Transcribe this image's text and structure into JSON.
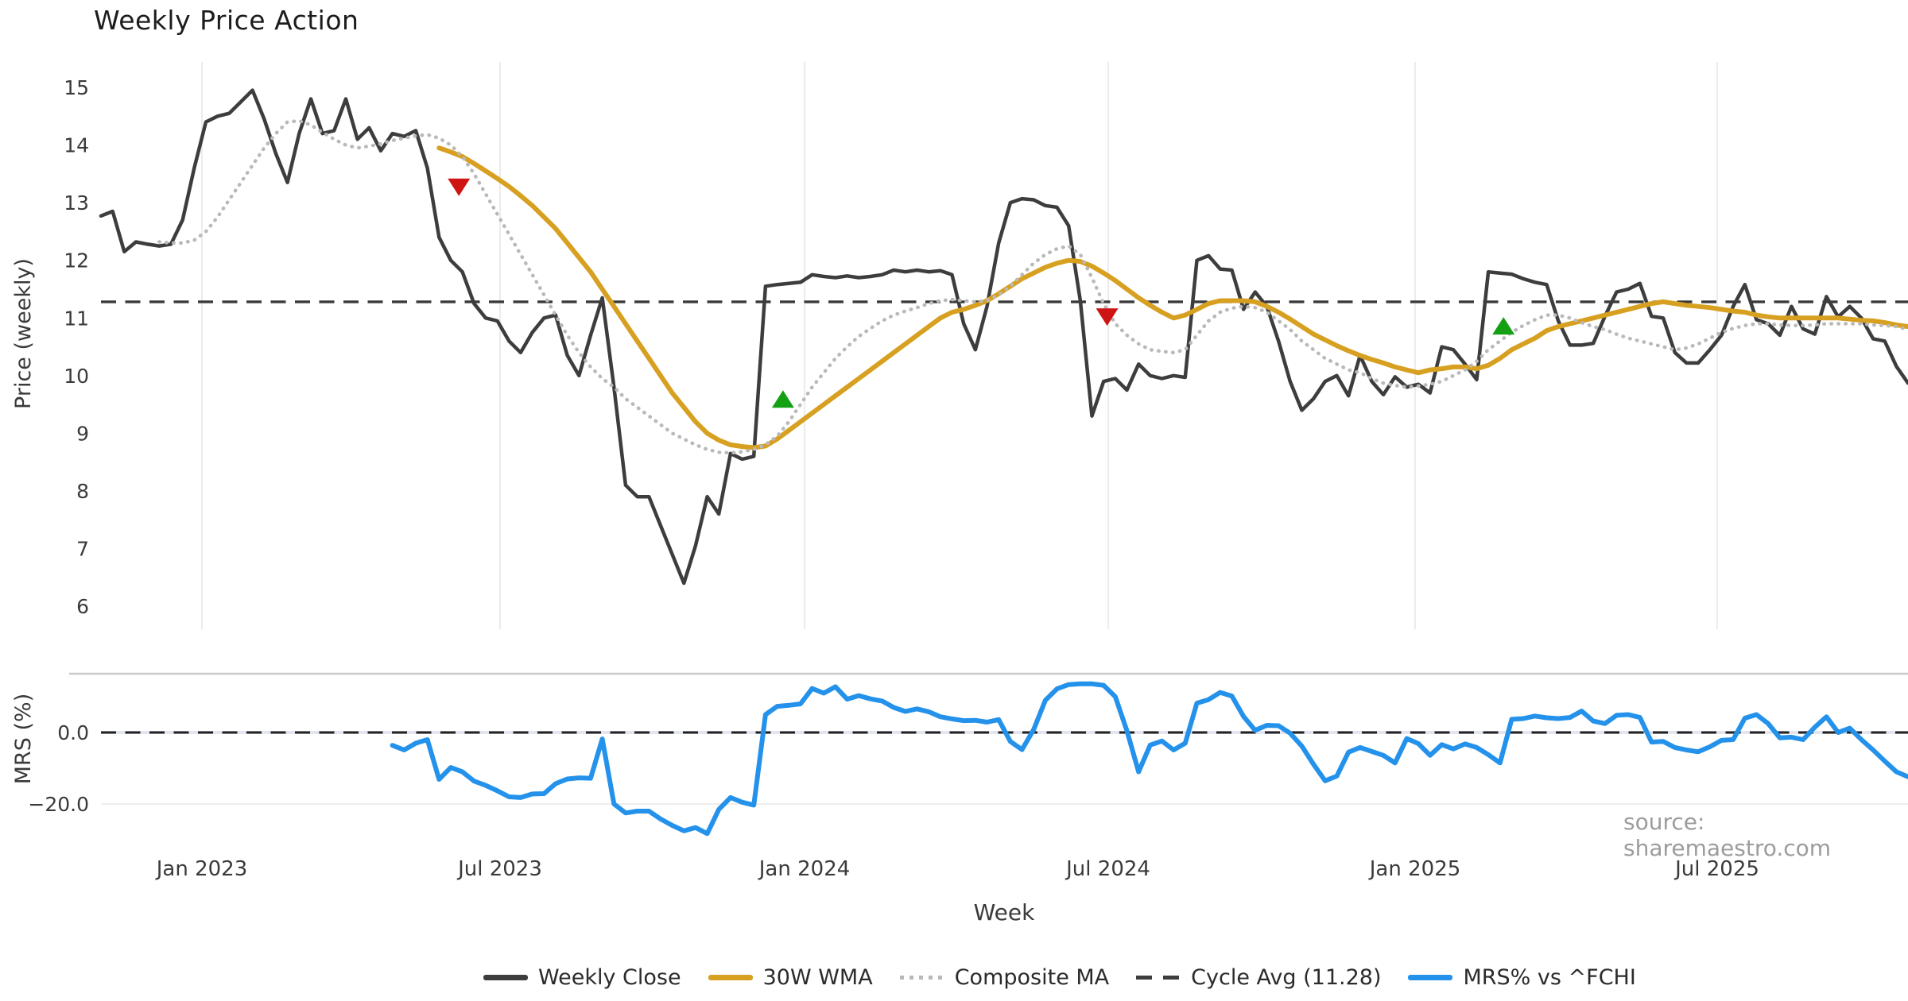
{
  "title": "Weekly Price Action",
  "source_note": "source: sharemaestro.com",
  "colors": {
    "close": "#3d3d3d",
    "wma": "#d7a021",
    "composite": "#b9b9b9",
    "cycle_avg": "#3a3a3a",
    "mrs": "#2492eb",
    "sell_marker": "#cf1414",
    "buy_marker": "#13a113",
    "grid_vertical": "#ececec",
    "mrs_top_spine": "#c9c9c9",
    "mrs_zero_band": "#e3e6f0",
    "mrs_minus20_grid": "#ededed",
    "tick_text": "#3a3a3a",
    "axis_label_text": "#2b2b2b"
  },
  "legend": [
    {
      "label": "Weekly Close",
      "style": "solid",
      "color": "#3d3d3d",
      "thick": 7
    },
    {
      "label": "30W WMA",
      "style": "solid",
      "color": "#d7a021",
      "thick": 7
    },
    {
      "label": "Composite MA",
      "style": "dotted",
      "color": "#b9b9b9",
      "thick": 5
    },
    {
      "label": "Cycle Avg (11.28)",
      "style": "dashed",
      "color": "#3d3d3d",
      "thick": 5
    },
    {
      "label": "MRS% vs ^FCHI",
      "style": "solid",
      "color": "#2492eb",
      "thick": 7
    }
  ],
  "chart_data": {
    "type": "line",
    "title": "Weekly Price Action",
    "xlabel": "Week",
    "panels": {
      "price": {
        "ylabel": "Price (weekly)",
        "ylim": [
          5.6,
          15.6
        ],
        "yticks": [
          "15",
          "14",
          "13",
          "12",
          "11",
          "10",
          "9",
          "8",
          "7",
          "6"
        ],
        "ytick_values": [
          15,
          14,
          13,
          12,
          11,
          10,
          9,
          8,
          7,
          6
        ],
        "grid": "vertical-only"
      },
      "mrs": {
        "ylabel": "MRS (%)",
        "ylim": [
          -31,
          16.5
        ],
        "yticks": [
          "0.0",
          "−20.0"
        ],
        "ytick_values": [
          0,
          -20
        ],
        "grid": "horizontal-only"
      }
    },
    "x_ticks": [
      {
        "label": "Jan 2023",
        "week": 8.66
      },
      {
        "label": "Jul 2023",
        "week": 34.23
      },
      {
        "label": "Jan 2024",
        "week": 60.35
      },
      {
        "label": "Jul 2024",
        "week": 86.4
      },
      {
        "label": "Jan 2025",
        "week": 112.72
      },
      {
        "label": "Jul 2025",
        "week": 138.63
      }
    ],
    "x_unit": "weekly points, week 0 ≈ Nov 2022, week 155 ≈ Nov 2025",
    "reference_lines": [
      {
        "name": "Cycle Avg (11.28)",
        "panel": "price",
        "value": 11.28,
        "style": "dashed",
        "color": "#3a3a3a"
      },
      {
        "name": "MRS zero line",
        "panel": "mrs",
        "value": 0,
        "style": "dashed",
        "color": "#222222"
      }
    ],
    "markers": [
      {
        "type": "sell",
        "week": 30.7,
        "value": 13.28
      },
      {
        "type": "buy",
        "week": 58.5,
        "value": 9.58
      },
      {
        "type": "sell",
        "week": 86.3,
        "value": 11.03
      },
      {
        "type": "buy",
        "week": 120.3,
        "value": 10.85
      }
    ],
    "series": [
      {
        "name": "Weekly Close",
        "panel": "price",
        "style": "solid",
        "color": "#3d3d3d",
        "width": 4.5,
        "start_week": 0,
        "values": [
          12.77,
          12.85,
          12.15,
          12.32,
          12.28,
          12.25,
          12.28,
          12.7,
          13.6,
          14.4,
          14.5,
          14.55,
          14.75,
          14.95,
          14.45,
          13.85,
          13.35,
          14.2,
          14.8,
          14.2,
          14.25,
          14.8,
          14.1,
          14.3,
          13.9,
          14.2,
          14.15,
          14.25,
          13.6,
          12.4,
          12.0,
          11.8,
          11.25,
          11.0,
          10.95,
          10.6,
          10.4,
          10.75,
          11.0,
          11.05,
          10.35,
          10.0,
          10.7,
          11.35,
          9.8,
          8.1,
          7.9,
          7.9,
          7.4,
          6.9,
          6.4,
          7.05,
          7.9,
          7.6,
          8.65,
          8.55,
          8.6,
          11.55,
          11.58,
          11.6,
          11.62,
          11.75,
          11.72,
          11.7,
          11.73,
          11.7,
          11.72,
          11.75,
          11.83,
          11.8,
          11.83,
          11.8,
          11.82,
          11.75,
          10.9,
          10.45,
          11.2,
          12.3,
          13.0,
          13.07,
          13.05,
          12.95,
          12.92,
          12.6,
          11.3,
          9.3,
          9.9,
          9.95,
          9.75,
          10.2,
          10.0,
          9.95,
          10.0,
          9.97,
          12.0,
          12.08,
          11.85,
          11.83,
          11.15,
          11.45,
          11.2,
          10.6,
          9.9,
          9.4,
          9.6,
          9.9,
          10.0,
          9.65,
          10.35,
          9.9,
          9.67,
          9.98,
          9.8,
          9.85,
          9.7,
          10.5,
          10.45,
          10.2,
          9.93,
          11.8,
          11.78,
          11.76,
          11.68,
          11.62,
          11.58,
          10.95,
          10.53,
          10.53,
          10.56,
          11.03,
          11.45,
          11.5,
          11.6,
          11.03,
          11.0,
          10.4,
          10.22,
          10.22,
          10.45,
          10.7,
          11.2,
          11.58,
          10.97,
          10.9,
          10.7,
          11.2,
          10.81,
          10.72,
          11.37,
          11.02,
          11.2,
          11.0,
          10.64,
          10.6,
          10.16,
          9.87
        ]
      },
      {
        "name": "30W WMA",
        "panel": "price",
        "style": "solid",
        "color": "#d7a021",
        "width": 6,
        "start_week": 29,
        "values": [
          13.95,
          13.88,
          13.8,
          13.68,
          13.55,
          13.42,
          13.28,
          13.12,
          12.95,
          12.75,
          12.55,
          12.3,
          12.05,
          11.8,
          11.5,
          11.2,
          10.9,
          10.6,
          10.3,
          10.0,
          9.7,
          9.45,
          9.2,
          9.0,
          8.88,
          8.8,
          8.77,
          8.75,
          8.78,
          8.9,
          9.05,
          9.2,
          9.35,
          9.5,
          9.65,
          9.8,
          9.95,
          10.1,
          10.25,
          10.4,
          10.55,
          10.7,
          10.85,
          11.0,
          11.1,
          11.15,
          11.22,
          11.3,
          11.42,
          11.55,
          11.68,
          11.78,
          11.88,
          11.95,
          12.0,
          11.98,
          11.9,
          11.78,
          11.65,
          11.5,
          11.35,
          11.22,
          11.1,
          11.0,
          11.05,
          11.15,
          11.25,
          11.3,
          11.3,
          11.3,
          11.28,
          11.2,
          11.1,
          10.98,
          10.85,
          10.72,
          10.62,
          10.52,
          10.43,
          10.35,
          10.28,
          10.22,
          10.15,
          10.1,
          10.05,
          10.1,
          10.12,
          10.15,
          10.15,
          10.12,
          10.18,
          10.3,
          10.45,
          10.55,
          10.65,
          10.78,
          10.85,
          10.9,
          10.95,
          11.0,
          11.05,
          11.1,
          11.15,
          11.2,
          11.25,
          11.28,
          11.25,
          11.22,
          11.2,
          11.18,
          11.15,
          11.12,
          11.1,
          11.05,
          11.02,
          11.0,
          11.0,
          11.0,
          11.0,
          11.0,
          11.0,
          10.98,
          10.96,
          10.95,
          10.92,
          10.88,
          10.85
        ]
      },
      {
        "name": "Composite MA",
        "panel": "price",
        "style": "dotted",
        "color": "#b9b9b9",
        "width": 4.5,
        "start_week": 5,
        "values": [
          12.32,
          12.3,
          12.3,
          12.35,
          12.5,
          12.75,
          13.05,
          13.35,
          13.65,
          13.95,
          14.2,
          14.4,
          14.42,
          14.35,
          14.22,
          14.1,
          14.0,
          13.95,
          13.98,
          14.02,
          14.08,
          14.12,
          14.16,
          14.18,
          14.12,
          14.0,
          13.8,
          13.5,
          13.15,
          12.8,
          12.45,
          12.1,
          11.75,
          11.4,
          11.05,
          10.7,
          10.4,
          10.15,
          9.95,
          9.8,
          9.6,
          9.45,
          9.3,
          9.15,
          9.0,
          8.9,
          8.8,
          8.72,
          8.67,
          8.66,
          8.68,
          8.72,
          8.8,
          8.95,
          9.2,
          9.5,
          9.8,
          10.05,
          10.3,
          10.5,
          10.68,
          10.82,
          10.95,
          11.05,
          11.12,
          11.18,
          11.25,
          11.3,
          11.32,
          11.3,
          11.28,
          11.3,
          11.4,
          11.55,
          11.75,
          11.95,
          12.1,
          12.2,
          12.25,
          12.1,
          11.7,
          11.25,
          10.9,
          10.7,
          10.55,
          10.45,
          10.42,
          10.4,
          10.45,
          10.7,
          10.95,
          11.1,
          11.17,
          11.2,
          11.18,
          11.1,
          10.95,
          10.8,
          10.6,
          10.45,
          10.3,
          10.2,
          10.1,
          10.05,
          9.95,
          9.87,
          9.83,
          9.8,
          9.82,
          9.85,
          9.9,
          10.0,
          10.1,
          10.25,
          10.45,
          10.6,
          10.75,
          10.87,
          10.97,
          11.05,
          11.05,
          11.0,
          10.92,
          10.85,
          10.8,
          10.72,
          10.65,
          10.6,
          10.55,
          10.5,
          10.45,
          10.48,
          10.55,
          10.65,
          10.75,
          10.82,
          10.87,
          10.9,
          10.9,
          10.88,
          10.87,
          10.87,
          10.88,
          10.9,
          10.9,
          10.9,
          10.9,
          10.88,
          10.87,
          10.85,
          10.8
        ]
      },
      {
        "name": "MRS% vs ^FCHI",
        "panel": "mrs",
        "style": "solid",
        "color": "#2492eb",
        "width": 6,
        "start_week": 25,
        "values": [
          -3.6,
          -4.9,
          -3.0,
          -2.0,
          -13.1,
          -9.8,
          -11.0,
          -13.6,
          -14.8,
          -16.3,
          -18.0,
          -18.2,
          -17.2,
          -17.1,
          -14.3,
          -13.0,
          -12.7,
          -12.8,
          -1.8,
          -20.0,
          -22.5,
          -22.0,
          -22.0,
          -24.2,
          -26.0,
          -27.5,
          -26.6,
          -28.3,
          -21.5,
          -18.2,
          -19.5,
          -20.3,
          5.0,
          7.3,
          7.6,
          8.0,
          12.3,
          11.0,
          12.8,
          9.3,
          10.3,
          9.4,
          8.8,
          7.0,
          5.9,
          6.6,
          5.8,
          4.4,
          3.8,
          3.3,
          3.4,
          2.9,
          3.6,
          -2.5,
          -4.8,
          0.8,
          9.0,
          12.2,
          13.4,
          13.6,
          13.6,
          13.2,
          10.0,
          0.5,
          -11.0,
          -3.5,
          -2.4,
          -4.9,
          -3.0,
          8.2,
          9.2,
          11.2,
          10.2,
          4.5,
          0.6,
          2.0,
          1.9,
          -0.2,
          -3.8,
          -8.9,
          -13.5,
          -12.2,
          -5.5,
          -4.2,
          -5.3,
          -6.4,
          -8.5,
          -1.7,
          -3.1,
          -6.4,
          -3.4,
          -4.6,
          -3.2,
          -4.2,
          -6.2,
          -8.5,
          3.7,
          3.9,
          4.6,
          4.1,
          3.9,
          4.2,
          6.0,
          3.2,
          2.5,
          4.8,
          5.0,
          4.2,
          -2.7,
          -2.5,
          -4.2,
          -4.9,
          -5.4,
          -4.0,
          -2.2,
          -2.0,
          4.0,
          5.0,
          2.5,
          -1.5,
          -1.3,
          -2.0,
          1.5,
          4.4,
          0.0,
          1.2,
          -2.0,
          -4.9,
          -8.0,
          -11.0,
          -12.4
        ]
      }
    ]
  }
}
